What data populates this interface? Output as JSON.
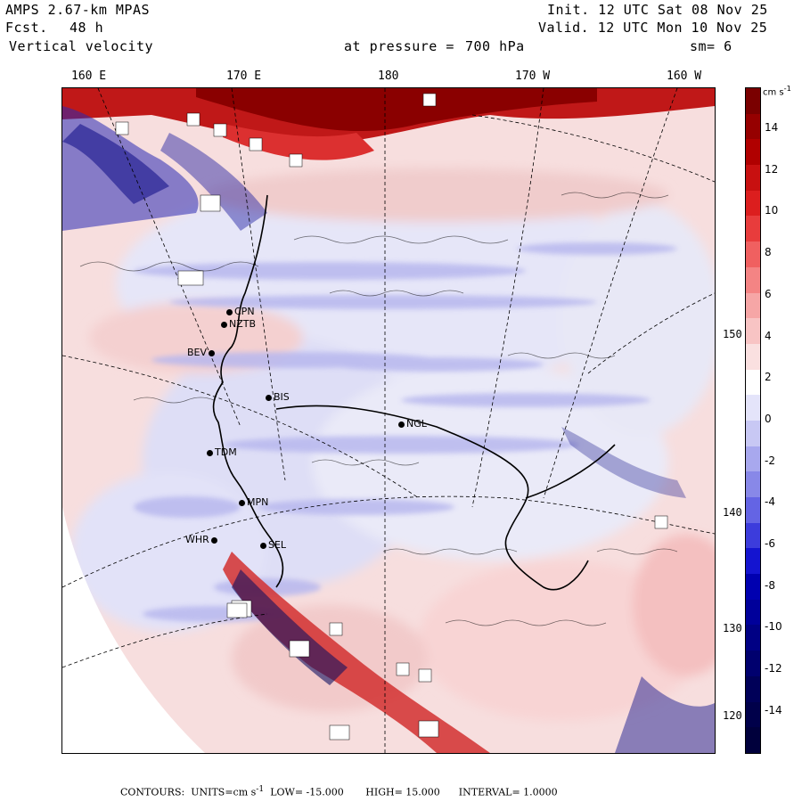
{
  "header": {
    "model": "AMPS 2.67-km MPAS",
    "fcst_label": "Fcst.",
    "fcst_value": "48 h",
    "field": "Vertical velocity",
    "pressure_label": "at pressure =",
    "pressure_value": "700 hPa",
    "init": "Init. 12 UTC Sat 08 Nov 25",
    "valid": "Valid. 12 UTC Mon 10 Nov 25",
    "smoothing": "sm= 6"
  },
  "longitude_labels": [
    "160 E",
    "170 E",
    "180",
    "170 W",
    "160 W"
  ],
  "latitude_labels": [
    "150 W",
    "140 W",
    "130 W",
    "120 W"
  ],
  "stations": [
    {
      "id": "CPN",
      "key": "cpn"
    },
    {
      "id": "NZTB",
      "key": "nztb"
    },
    {
      "id": "BEV",
      "key": "bev"
    },
    {
      "id": "BIS",
      "key": "bis"
    },
    {
      "id": "NGL",
      "key": "ngl"
    },
    {
      "id": "TDM",
      "key": "tdm"
    },
    {
      "id": "MPN",
      "key": "mpn"
    },
    {
      "id": "WHR",
      "key": "whr"
    },
    {
      "id": "SEL",
      "key": "sel"
    }
  ],
  "colorbar": {
    "unit": "cm s",
    "unit_exp": "-1",
    "ticks": [
      "14",
      "12",
      "10",
      "8",
      "6",
      "4",
      "2",
      "0",
      "-2",
      "-4",
      "-6",
      "-8",
      "-10",
      "-12",
      "-14"
    ],
    "colors": [
      "#7a0000",
      "#960000",
      "#b00000",
      "#c81010",
      "#dc1e1e",
      "#e83c3c",
      "#f06060",
      "#f48484",
      "#f6a6a6",
      "#f8c4c4",
      "#fae0e0",
      "#ffffff",
      "#e4e4fa",
      "#c8c8f4",
      "#a8a8ee",
      "#8888e8",
      "#6464e4",
      "#3c3cdc",
      "#1414d0",
      "#0000b0",
      "#00009a",
      "#000084",
      "#00006e",
      "#000058",
      "#00004a",
      "#00003c"
    ]
  },
  "footer": {
    "contours": "CONTOURS:",
    "units": "UNITS=cm s",
    "units_exp": "-1",
    "low": "LOW= -15.000",
    "high": "HIGH= 15.000",
    "interval": "INTERVAL= 1.0000"
  }
}
